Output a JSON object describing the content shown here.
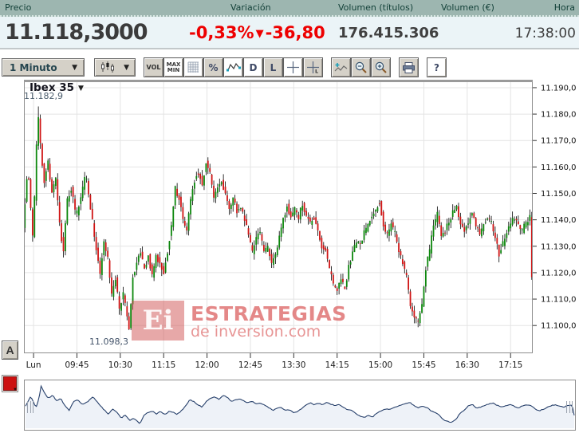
{
  "icons": {
    "arrow_down": "▼"
  },
  "header": {
    "columns": [
      "Precio",
      "Variación",
      "Volumen (títulos)",
      "Volumen (€)",
      "Hora"
    ],
    "price": "11.118,3000",
    "variation_pct": "-0,33%",
    "variation_abs": "-36,80",
    "volume_titles": "176.415.306",
    "volume_eur": "",
    "time": "17:38:00",
    "colors": {
      "bar_bg": "#9db6b0",
      "bar_text": "#113f37",
      "values_bg": "#ebf4f7",
      "negative": "#ee0000"
    }
  },
  "toolbar": {
    "interval_value": "1 Minuto",
    "buttons": [
      {
        "id": "vol",
        "icon": "volume-icon",
        "label": "VOL",
        "white": false
      },
      {
        "id": "maxmin",
        "icon": "maxmin-icon",
        "label": "MAX MIN",
        "white": true
      },
      {
        "id": "grid",
        "icon": "grid-icon",
        "label": "",
        "white": true
      },
      {
        "id": "percent",
        "icon": "percent-icon",
        "label": "%",
        "white": false
      },
      {
        "id": "range",
        "icon": "minmax-chart-icon",
        "label": "",
        "white": true
      },
      {
        "id": "line-d",
        "icon": "daily-icon",
        "label": "D",
        "white": true
      },
      {
        "id": "line-l",
        "icon": "line-icon",
        "label": "L",
        "white": false
      },
      {
        "id": "crosshair",
        "icon": "crosshair-icon",
        "label": "",
        "white": true
      },
      {
        "id": "crosshair-l",
        "icon": "crosshair-l-icon",
        "label": "L",
        "white": false
      },
      {
        "id": "trend",
        "icon": "add-trendline-icon",
        "label": "",
        "white": false
      },
      {
        "id": "zoom-out",
        "icon": "zoom-out-icon",
        "label": "",
        "white": false
      },
      {
        "id": "zoom-in",
        "icon": "zoom-in-icon",
        "label": "",
        "white": false
      },
      {
        "id": "print",
        "icon": "print-icon",
        "label": "",
        "white": false
      },
      {
        "id": "help",
        "icon": "help-icon",
        "label": "?",
        "white": true
      }
    ]
  },
  "chart": {
    "title": "Ibex 35",
    "high_label": "11.182,9",
    "low_label": "11.098,3",
    "watermark": {
      "logo": "Ei",
      "line1": "ESTRATEGIAS",
      "line2": "de inversion.com"
    },
    "side_buttons": {
      "a_label": "A"
    }
  },
  "chart_data": {
    "type": "candlestick",
    "instrument": "Ibex 35",
    "interval": "1 Minuto",
    "high": 11182.9,
    "low": 11098.3,
    "last": 11118.3,
    "grid": true,
    "ylim": [
      11089.5,
      11193
    ],
    "y_ticks": [
      11190,
      11180,
      11170,
      11160,
      11150,
      11140,
      11130,
      11120,
      11110,
      11100
    ],
    "y_tick_labels": [
      "11.190,0",
      "11.180,0",
      "11.170,0",
      "11.160,0",
      "11.150,0",
      "11.140,0",
      "11.130,0",
      "11.120,0",
      "11.110,0",
      "11.100,0"
    ],
    "x_tick_labels": [
      "Lun",
      "09:45",
      "10:30",
      "11:15",
      "12:00",
      "12:45",
      "13:30",
      "14:15",
      "15:00",
      "15:45",
      "16:30",
      "17:15"
    ],
    "x_tick_times": [
      "09:00",
      "09:45",
      "10:30",
      "11:15",
      "12:00",
      "12:45",
      "13:30",
      "14:15",
      "15:00",
      "15:45",
      "16:30",
      "17:15"
    ],
    "session": {
      "start": "08:50",
      "end": "17:38"
    },
    "up_color": "#0c870c",
    "down_color": "#d01414",
    "wick_color": "#000000",
    "waypoints": [
      [
        "08:50",
        11138
      ],
      [
        "08:55",
        11160
      ],
      [
        "09:00",
        11134
      ],
      [
        "09:03",
        11155
      ],
      [
        "09:05",
        11182.9
      ],
      [
        "09:08",
        11168
      ],
      [
        "09:12",
        11155
      ],
      [
        "09:16",
        11162
      ],
      [
        "09:20",
        11150
      ],
      [
        "09:24",
        11155
      ],
      [
        "09:28",
        11138
      ],
      [
        "09:32",
        11128
      ],
      [
        "09:36",
        11148
      ],
      [
        "09:40",
        11152
      ],
      [
        "09:45",
        11141
      ],
      [
        "09:50",
        11148
      ],
      [
        "09:55",
        11158
      ],
      [
        "10:00",
        11145
      ],
      [
        "10:05",
        11131
      ],
      [
        "10:10",
        11120
      ],
      [
        "10:14",
        11132
      ],
      [
        "10:18",
        11125
      ],
      [
        "10:22",
        11111
      ],
      [
        "10:26",
        11118
      ],
      [
        "10:30",
        11106
      ],
      [
        "10:34",
        11112
      ],
      [
        "10:38",
        11103
      ],
      [
        "10:40",
        11098.3
      ],
      [
        "10:44",
        11118
      ],
      [
        "10:48",
        11124
      ],
      [
        "10:52",
        11127
      ],
      [
        "10:56",
        11121
      ],
      [
        "11:00",
        11126
      ],
      [
        "11:04",
        11119
      ],
      [
        "11:08",
        11126
      ],
      [
        "11:12",
        11124
      ],
      [
        "11:16",
        11120
      ],
      [
        "11:20",
        11128
      ],
      [
        "11:24",
        11138
      ],
      [
        "11:28",
        11152
      ],
      [
        "11:32",
        11148
      ],
      [
        "11:36",
        11140
      ],
      [
        "11:40",
        11136
      ],
      [
        "11:44",
        11148
      ],
      [
        "11:48",
        11155
      ],
      [
        "11:52",
        11158
      ],
      [
        "11:56",
        11153
      ],
      [
        "12:00",
        11162
      ],
      [
        "12:04",
        11158
      ],
      [
        "12:08",
        11148
      ],
      [
        "12:12",
        11152
      ],
      [
        "12:16",
        11154
      ],
      [
        "12:20",
        11150
      ],
      [
        "12:24",
        11145
      ],
      [
        "12:28",
        11148
      ],
      [
        "12:32",
        11143
      ],
      [
        "12:36",
        11145
      ],
      [
        "12:40",
        11140
      ],
      [
        "12:44",
        11135
      ],
      [
        "12:48",
        11128
      ],
      [
        "12:52",
        11133
      ],
      [
        "12:56",
        11135
      ],
      [
        "13:00",
        11128
      ],
      [
        "13:04",
        11130
      ],
      [
        "13:08",
        11123
      ],
      [
        "13:12",
        11126
      ],
      [
        "13:16",
        11133
      ],
      [
        "13:20",
        11140
      ],
      [
        "13:24",
        11145
      ],
      [
        "13:28",
        11141
      ],
      [
        "13:32",
        11144
      ],
      [
        "13:36",
        11141
      ],
      [
        "13:40",
        11146
      ],
      [
        "13:44",
        11142
      ],
      [
        "13:48",
        11139
      ],
      [
        "13:52",
        11141
      ],
      [
        "13:56",
        11135
      ],
      [
        "14:00",
        11130
      ],
      [
        "14:04",
        11128
      ],
      [
        "14:08",
        11121
      ],
      [
        "14:12",
        11116
      ],
      [
        "14:16",
        11113
      ],
      [
        "14:20",
        11117
      ],
      [
        "14:24",
        11114
      ],
      [
        "14:28",
        11122
      ],
      [
        "14:32",
        11127
      ],
      [
        "14:36",
        11132
      ],
      [
        "14:40",
        11130
      ],
      [
        "14:44",
        11135
      ],
      [
        "14:48",
        11138
      ],
      [
        "14:52",
        11141
      ],
      [
        "14:56",
        11144
      ],
      [
        "15:00",
        11147
      ],
      [
        "15:04",
        11138
      ],
      [
        "15:08",
        11134
      ],
      [
        "15:12",
        11138
      ],
      [
        "15:16",
        11135
      ],
      [
        "15:20",
        11128
      ],
      [
        "15:24",
        11124
      ],
      [
        "15:28",
        11118
      ],
      [
        "15:32",
        11108
      ],
      [
        "15:36",
        11104
      ],
      [
        "15:40",
        11101
      ],
      [
        "15:44",
        11108
      ],
      [
        "15:48",
        11122
      ],
      [
        "15:52",
        11128
      ],
      [
        "15:56",
        11138
      ],
      [
        "16:00",
        11142
      ],
      [
        "16:04",
        11134
      ],
      [
        "16:08",
        11136
      ],
      [
        "16:12",
        11139
      ],
      [
        "16:16",
        11143
      ],
      [
        "16:20",
        11145
      ],
      [
        "16:24",
        11139
      ],
      [
        "16:28",
        11136
      ],
      [
        "16:32",
        11139
      ],
      [
        "16:36",
        11142
      ],
      [
        "16:40",
        11138
      ],
      [
        "16:44",
        11134
      ],
      [
        "16:48",
        11138
      ],
      [
        "16:52",
        11141
      ],
      [
        "16:56",
        11139
      ],
      [
        "17:00",
        11133
      ],
      [
        "17:04",
        11127
      ],
      [
        "17:08",
        11131
      ],
      [
        "17:12",
        11135
      ],
      [
        "17:16",
        11139
      ],
      [
        "17:20",
        11141
      ],
      [
        "17:24",
        11138
      ],
      [
        "17:28",
        11136
      ],
      [
        "17:32",
        11139
      ],
      [
        "17:36",
        11141
      ],
      [
        "17:38",
        11118.3
      ]
    ],
    "overview": {
      "type": "area",
      "line_color": "#27406b",
      "fill_color": "#eef2f8"
    }
  }
}
